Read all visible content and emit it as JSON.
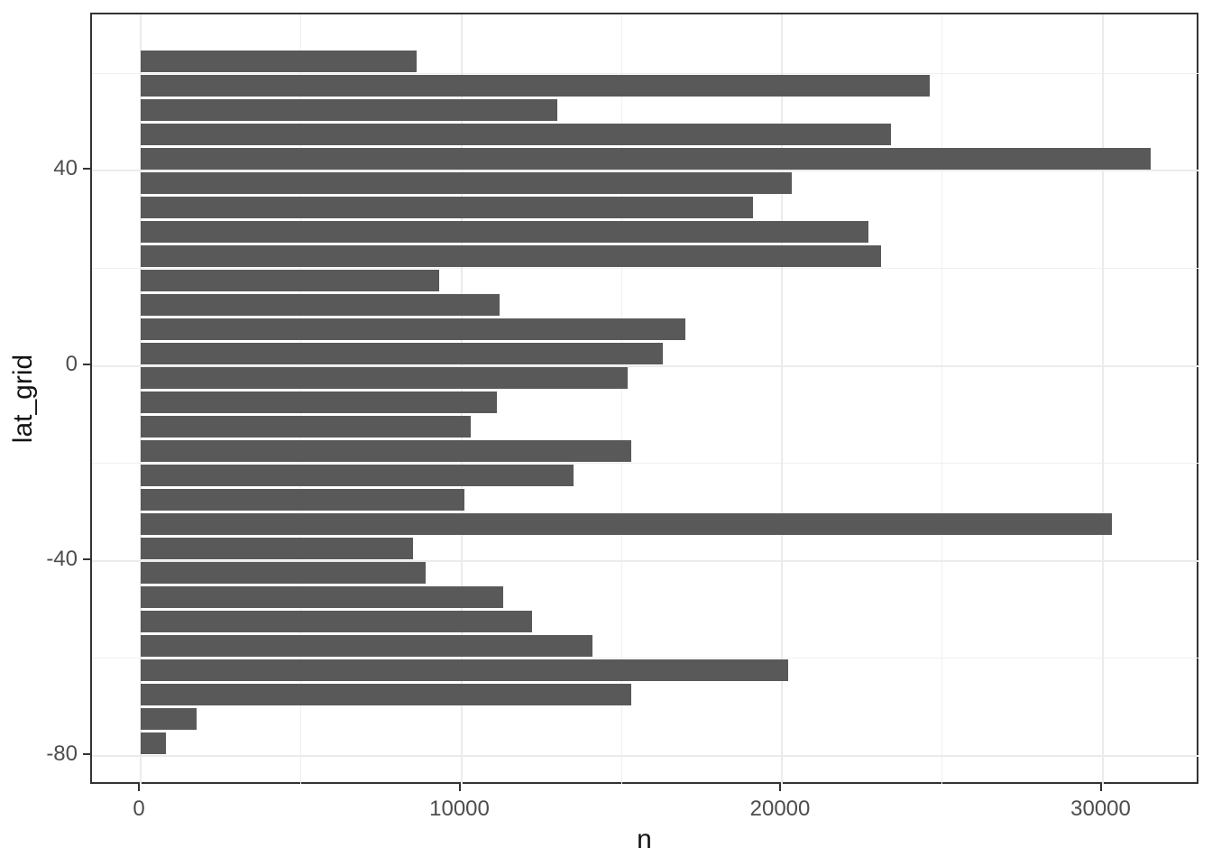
{
  "chart_data": {
    "type": "bar",
    "orientation": "horizontal",
    "title": "",
    "xlabel": "n",
    "ylabel": "lat_grid",
    "categories": [
      62.5,
      57.5,
      52.5,
      47.5,
      42.5,
      37.5,
      32.5,
      27.5,
      22.5,
      17.5,
      12.5,
      7.5,
      2.5,
      -2.5,
      -7.5,
      -12.5,
      -17.5,
      -22.5,
      -27.5,
      -32.5,
      -37.5,
      -42.5,
      -47.5,
      -52.5,
      -57.5,
      -62.5,
      -67.5,
      -72.5,
      -77.5
    ],
    "values": [
      8600,
      24600,
      13000,
      23400,
      31500,
      20300,
      19100,
      22700,
      23100,
      9300,
      11200,
      17000,
      16300,
      15200,
      11100,
      10300,
      15300,
      13500,
      10100,
      30300,
      8500,
      8900,
      11300,
      12200,
      14100,
      20200,
      15300,
      1750,
      800
    ],
    "x_axis": {
      "label": "n",
      "ticks": [
        0,
        10000,
        20000,
        30000
      ],
      "tick_labels": [
        "0",
        "10000",
        "20000",
        "30000"
      ],
      "minor_gridlines": [
        5000,
        15000,
        25000
      ],
      "range": [
        -1575,
        33075
      ]
    },
    "y_axis": {
      "label": "lat_grid",
      "ticks": [
        40,
        0,
        -40,
        -80
      ],
      "tick_labels": [
        "40",
        "0",
        "-40",
        "-80"
      ],
      "minor_gridlines": [
        60,
        20,
        -20,
        -60
      ],
      "range": [
        71.95,
        -86.98
      ]
    },
    "grid": true,
    "legend": "none",
    "colors": {
      "bar_fill": "#595959",
      "grid_major": "#ebebeb",
      "grid_minor": "#f0f0f0",
      "panel_border": "#333333",
      "tick_mark": "#333333",
      "tick_text": "#4d4d4d",
      "axis_title_text": "#141414",
      "background": "#ffffff"
    }
  }
}
